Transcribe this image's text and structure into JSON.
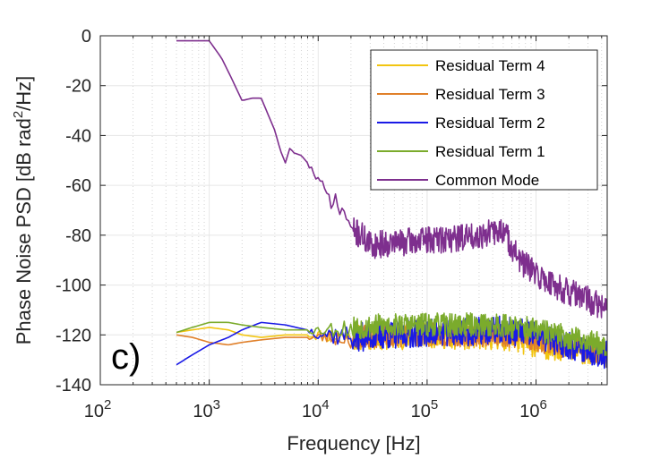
{
  "chart_data": {
    "type": "line",
    "panel_label": "c)",
    "xlabel": "Frequency [Hz]",
    "ylabel_main": "Phase Noise PSD [dB rad",
    "ylabel_sup": "2",
    "ylabel_tail": "/Hz]",
    "x_scale": "log",
    "xlim": [
      100,
      4500000
    ],
    "ylim": [
      -140,
      0
    ],
    "x_ticks": [
      {
        "base": "10",
        "exp": "2",
        "value": 100
      },
      {
        "base": "10",
        "exp": "3",
        "value": 1000
      },
      {
        "base": "10",
        "exp": "4",
        "value": 10000
      },
      {
        "base": "10",
        "exp": "5",
        "value": 100000
      },
      {
        "base": "10",
        "exp": "6",
        "value": 1000000
      }
    ],
    "y_ticks": [
      0,
      -20,
      -40,
      -60,
      -80,
      -100,
      -120,
      -140
    ],
    "grid": true,
    "legend_position": "top-right",
    "series": [
      {
        "name": "Residual Term 4",
        "color": "#f2c511",
        "noise": 3.2,
        "seed": 11,
        "x": [
          500,
          700,
          1000,
          1500,
          2000,
          3000,
          5000,
          10000,
          20000,
          50000,
          100000,
          200000,
          500000,
          1000000,
          2000000,
          4500000
        ],
        "y": [
          -119,
          -118,
          -117,
          -118,
          -120,
          -121,
          -120,
          -120,
          -121,
          -121,
          -120,
          -121,
          -121,
          -124,
          -126,
          -128
        ]
      },
      {
        "name": "Residual Term 3",
        "color": "#e0802a",
        "noise": 3.0,
        "seed": 23,
        "x": [
          500,
          700,
          1000,
          1500,
          2000,
          3000,
          5000,
          10000,
          20000,
          50000,
          100000,
          200000,
          500000,
          1000000,
          2000000,
          4500000
        ],
        "y": [
          -120,
          -121,
          -123,
          -124,
          -123,
          -122,
          -121,
          -121,
          -121,
          -120,
          -120,
          -120,
          -120,
          -122,
          -125,
          -127
        ]
      },
      {
        "name": "Residual Term 2",
        "color": "#1a1ae6",
        "noise": 3.6,
        "seed": 37,
        "x": [
          500,
          700,
          1000,
          1500,
          2000,
          3000,
          5000,
          10000,
          20000,
          50000,
          100000,
          200000,
          500000,
          1000000,
          2000000,
          4500000
        ],
        "y": [
          -132,
          -128,
          -124,
          -121,
          -118,
          -115,
          -116,
          -119,
          -121,
          -120,
          -119,
          -119,
          -118,
          -120,
          -124,
          -128
        ]
      },
      {
        "name": "Residual Term 1",
        "color": "#7bab2c",
        "noise": 3.0,
        "seed": 53,
        "x": [
          500,
          700,
          1000,
          1500,
          2000,
          3000,
          5000,
          10000,
          20000,
          50000,
          100000,
          200000,
          500000,
          1000000,
          2000000,
          4500000
        ],
        "y": [
          -119,
          -117,
          -115,
          -115,
          -116,
          -117,
          -118,
          -118,
          -117,
          -116,
          -116,
          -116,
          -116,
          -118,
          -121,
          -124
        ]
      },
      {
        "name": "Common Mode",
        "color": "#7e2f8e",
        "noise": 3.5,
        "seed": 71,
        "x": [
          500,
          700,
          1000,
          1300,
          1600,
          2000,
          2500,
          3000,
          3500,
          4000,
          4500,
          5000,
          5500,
          6000,
          7000,
          8000,
          10000,
          12000,
          15000,
          18000,
          20000,
          25000,
          30000,
          50000,
          100000,
          200000,
          400000,
          500000,
          700000,
          1000000,
          1500000,
          2000000,
          3000000,
          4500000
        ],
        "y": [
          -2,
          -2,
          -2,
          -9,
          -17,
          -26,
          -25,
          -25,
          -32,
          -38,
          -46,
          -51,
          -45,
          -47,
          -48,
          -51,
          -58,
          -64,
          -68,
          -72,
          -78,
          -80,
          -84,
          -83,
          -82,
          -81,
          -79,
          -78,
          -90,
          -96,
          -100,
          -103,
          -106,
          -110
        ]
      }
    ]
  }
}
